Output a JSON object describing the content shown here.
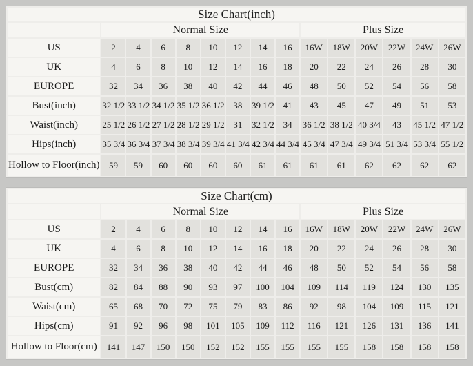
{
  "page_bg": "#c7c7c5",
  "colors": {
    "grid_gap": "#eeedea",
    "header_label_cell": "#f6f5f2",
    "data_cell": "#e2e1dd",
    "text": "#1c1c1c"
  },
  "chart_data": [
    {
      "type": "table",
      "title": "Size Chart(inch)",
      "group_headers": [
        "Normal Size",
        "Plus Size"
      ],
      "normal_column_count": 8,
      "plus_column_count": 6,
      "rows": [
        {
          "label": "US",
          "values": [
            "2",
            "4",
            "6",
            "8",
            "10",
            "12",
            "14",
            "16",
            "16W",
            "18W",
            "20W",
            "22W",
            "24W",
            "26W"
          ]
        },
        {
          "label": "UK",
          "values": [
            "4",
            "6",
            "8",
            "10",
            "12",
            "14",
            "16",
            "18",
            "20",
            "22",
            "24",
            "26",
            "28",
            "30"
          ]
        },
        {
          "label": "EUROPE",
          "values": [
            "32",
            "34",
            "36",
            "38",
            "40",
            "42",
            "44",
            "46",
            "48",
            "50",
            "52",
            "54",
            "56",
            "58"
          ]
        },
        {
          "label": "Bust(inch)",
          "values": [
            "32 1/2",
            "33 1/2",
            "34 1/2",
            "35 1/2",
            "36 1/2",
            "38",
            "39 1/2",
            "41",
            "43",
            "45",
            "47",
            "49",
            "51",
            "53"
          ]
        },
        {
          "label": "Waist(inch)",
          "values": [
            "25 1/2",
            "26 1/2",
            "27 1/2",
            "28 1/2",
            "29 1/2",
            "31",
            "32 1/2",
            "34",
            "36 1/2",
            "38 1/2",
            "40 3/4",
            "43",
            "45 1/2",
            "47 1/2"
          ]
        },
        {
          "label": "Hips(inch)",
          "values": [
            "35 3/4",
            "36 3/4",
            "37 3/4",
            "38 3/4",
            "39 3/4",
            "41 3/4",
            "42 3/4",
            "44 3/4",
            "45 3/4",
            "47 3/4",
            "49 3/4",
            "51 3/4",
            "53 3/4",
            "55 1/2"
          ]
        },
        {
          "label": "Hollow to Floor(inch)",
          "values": [
            "59",
            "59",
            "60",
            "60",
            "60",
            "60",
            "61",
            "61",
            "61",
            "61",
            "62",
            "62",
            "62",
            "62"
          ]
        }
      ]
    },
    {
      "type": "table",
      "title": "Size Chart(cm)",
      "group_headers": [
        "Normal Size",
        "Plus Size"
      ],
      "normal_column_count": 8,
      "plus_column_count": 6,
      "rows": [
        {
          "label": "US",
          "values": [
            "2",
            "4",
            "6",
            "8",
            "10",
            "12",
            "14",
            "16",
            "16W",
            "18W",
            "20W",
            "22W",
            "24W",
            "26W"
          ]
        },
        {
          "label": "UK",
          "values": [
            "4",
            "6",
            "8",
            "10",
            "12",
            "14",
            "16",
            "18",
            "20",
            "22",
            "24",
            "26",
            "28",
            "30"
          ]
        },
        {
          "label": "EUROPE",
          "values": [
            "32",
            "34",
            "36",
            "38",
            "40",
            "42",
            "44",
            "46",
            "48",
            "50",
            "52",
            "54",
            "56",
            "58"
          ]
        },
        {
          "label": "Bust(cm)",
          "values": [
            "82",
            "84",
            "88",
            "90",
            "93",
            "97",
            "100",
            "104",
            "109",
            "114",
            "119",
            "124",
            "130",
            "135"
          ]
        },
        {
          "label": "Waist(cm)",
          "values": [
            "65",
            "68",
            "70",
            "72",
            "75",
            "79",
            "83",
            "86",
            "92",
            "98",
            "104",
            "109",
            "115",
            "121"
          ]
        },
        {
          "label": "Hips(cm)",
          "values": [
            "91",
            "92",
            "96",
            "98",
            "101",
            "105",
            "109",
            "112",
            "116",
            "121",
            "126",
            "131",
            "136",
            "141"
          ]
        },
        {
          "label": "Hollow to Floor(cm)",
          "values": [
            "141",
            "147",
            "150",
            "150",
            "152",
            "152",
            "155",
            "155",
            "155",
            "155",
            "158",
            "158",
            "158",
            "158"
          ]
        }
      ]
    }
  ]
}
